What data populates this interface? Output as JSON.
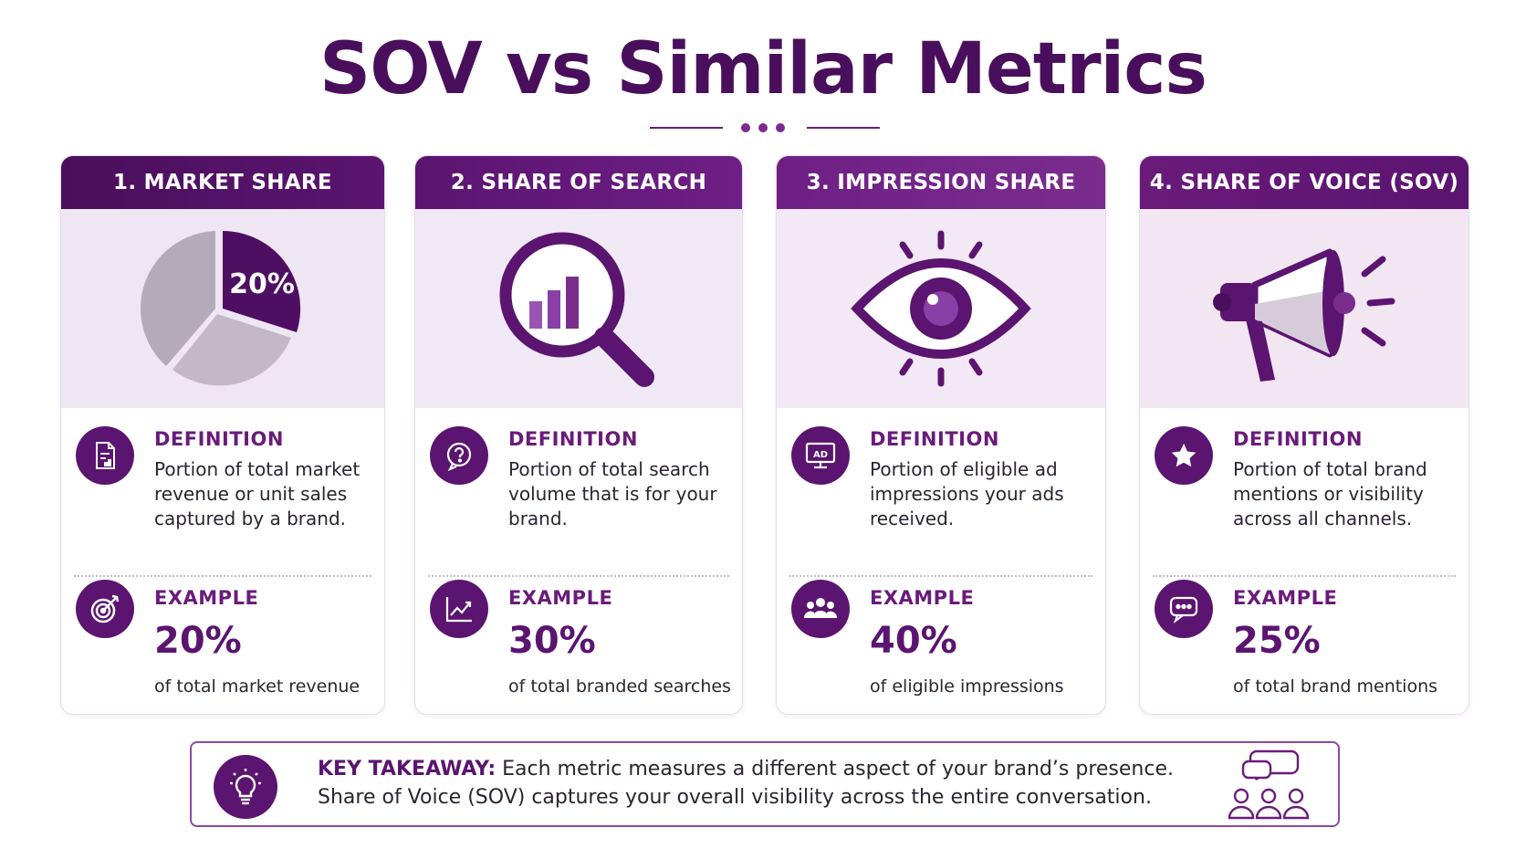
{
  "title": "SOV vs Similar Metrics",
  "colors": {
    "primary": "#5b1470",
    "accent": "#7b2d8e",
    "light_bg": "#f1e8f5"
  },
  "cards": [
    {
      "header": "1. MARKET SHARE",
      "visual_icon": "pie-chart-icon",
      "pie_label": "20%",
      "definition_label": "DEFINITION",
      "definition_icon": "document-chart-icon",
      "definition_text": "Portion of total market revenue or unit sales captured by a brand.",
      "example_label": "EXAMPLE",
      "example_icon": "target-icon",
      "example_value": "20%",
      "example_text": "of total market revenue"
    },
    {
      "header": "2. SHARE OF SEARCH",
      "visual_icon": "magnifier-bars-icon",
      "definition_label": "DEFINITION",
      "definition_icon": "question-bubble-icon",
      "definition_text": "Portion of total search volume that is for your brand.",
      "example_label": "EXAMPLE",
      "example_icon": "trend-chart-icon",
      "example_value": "30%",
      "example_text": "of total branded searches"
    },
    {
      "header": "3. IMPRESSION SHARE",
      "visual_icon": "eye-icon",
      "definition_label": "DEFINITION",
      "definition_icon": "ad-monitor-icon",
      "definition_text": "Portion of eligible ad impressions your ads received.",
      "example_label": "EXAMPLE",
      "example_icon": "group-icon",
      "example_value": "40%",
      "example_text": "of eligible impressions"
    },
    {
      "header": "4. SHARE OF VOICE (SOV)",
      "visual_icon": "megaphone-icon",
      "definition_label": "DEFINITION",
      "definition_icon": "star-icon",
      "definition_text": "Portion of total brand mentions or visibility across all channels.",
      "example_label": "EXAMPLE",
      "example_icon": "chat-bubble-icon",
      "example_value": "25%",
      "example_text": "of total brand mentions"
    }
  ],
  "takeaway": {
    "label": "KEY TAKEAWAY:",
    "line1": "Each metric measures a different aspect of your brand’s presence.",
    "line2": "Share of Voice (SOV) captures your overall visibility across the entire conversation.",
    "icon": "lightbulb-icon",
    "side_icon": "people-conversation-icon"
  }
}
